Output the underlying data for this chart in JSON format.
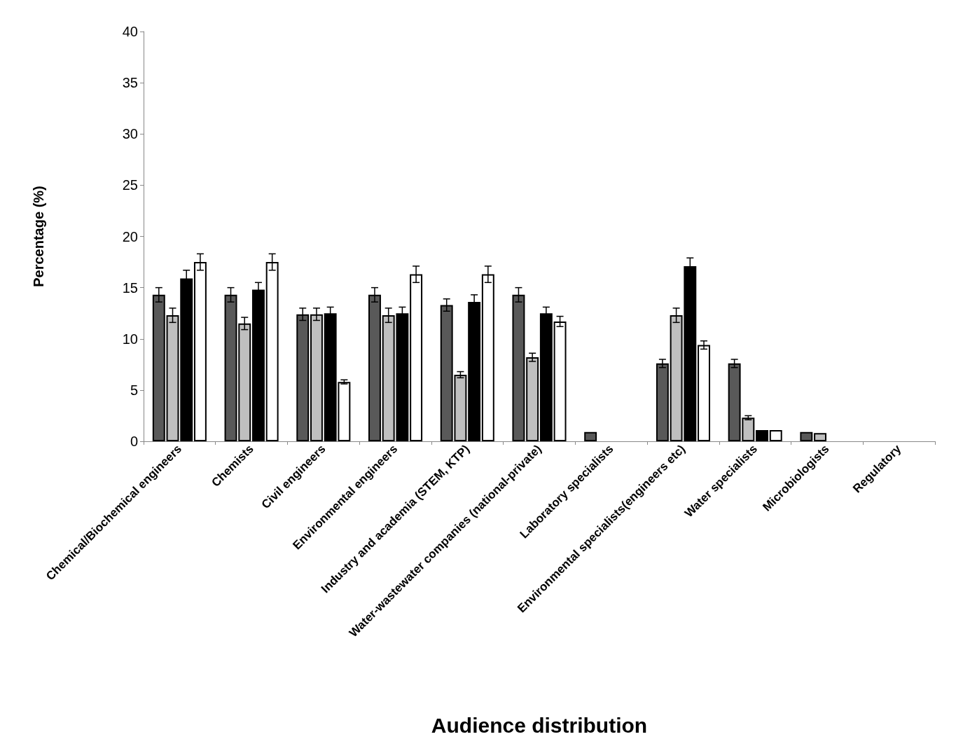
{
  "chart_data": {
    "type": "bar",
    "xlabel": "Audience distribution",
    "ylabel": "Percentage (%)",
    "categories": [
      "Chemical/Biochemical engineers",
      "Chemists",
      "Civil engineers",
      "Environmental engineers",
      "Industry and academia (STEM, KTP)",
      "Water-wastewater companies (national-private)",
      "Laboratory specialists",
      "Environmental specialists(engineers etc)",
      "Water specialists",
      "Microbiologists",
      "Regulatory"
    ],
    "series": [
      {
        "color": "#595959",
        "values": [
          14.3,
          14.3,
          12.4,
          14.3,
          13.3,
          14.3,
          0.9,
          7.6,
          7.6,
          0.9,
          null
        ],
        "errors": [
          0.7,
          0.7,
          0.6,
          0.7,
          0.6,
          0.7,
          null,
          0.4,
          0.4,
          null,
          null
        ]
      },
      {
        "color": "#bfbfbf",
        "values": [
          12.3,
          11.5,
          12.4,
          12.3,
          6.5,
          8.2,
          null,
          12.3,
          2.3,
          0.8,
          null
        ],
        "errors": [
          0.7,
          0.6,
          0.6,
          0.7,
          0.3,
          0.4,
          null,
          0.7,
          0.2,
          null,
          null
        ]
      },
      {
        "color": "#000000",
        "values": [
          15.9,
          14.8,
          12.5,
          12.5,
          13.6,
          12.5,
          null,
          17.1,
          1.1,
          null,
          null
        ],
        "errors": [
          0.8,
          0.7,
          0.6,
          0.6,
          0.7,
          0.6,
          null,
          0.8,
          null,
          null,
          null
        ]
      },
      {
        "color": "#ffffff",
        "values": [
          17.5,
          17.5,
          5.8,
          16.3,
          16.3,
          11.7,
          null,
          9.4,
          1.1,
          null,
          null
        ],
        "errors": [
          0.8,
          0.8,
          0.2,
          0.8,
          0.8,
          0.5,
          null,
          0.4,
          null,
          null,
          null
        ]
      }
    ],
    "ylim": [
      0,
      40
    ],
    "yticks": [
      0,
      5,
      10,
      15,
      20,
      25,
      30,
      35,
      40
    ]
  }
}
